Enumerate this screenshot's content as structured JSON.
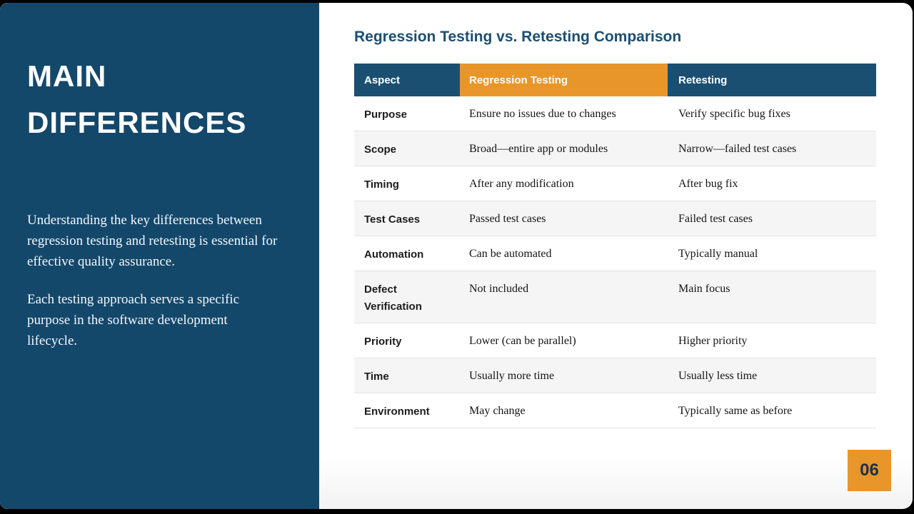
{
  "sidebar": {
    "title_line1": "MAIN",
    "title_line2": "DIFFERENCES",
    "paragraphs": [
      "Understanding the key differences between regression testing and retesting is essential for effective quality assurance.",
      "Each testing approach serves a specific purpose in the software development lifecycle."
    ]
  },
  "main": {
    "title": "Regression Testing vs. Retesting Comparison",
    "table": {
      "headers": [
        "Aspect",
        "Regression Testing",
        "Retesting"
      ],
      "rows": [
        {
          "aspect": "Purpose",
          "regression": "Ensure no issues due to changes",
          "retesting": "Verify specific bug fixes"
        },
        {
          "aspect": "Scope",
          "regression": "Broad—entire app or modules",
          "retesting": "Narrow—failed test cases"
        },
        {
          "aspect": "Timing",
          "regression": "After any modification",
          "retesting": "After bug fix"
        },
        {
          "aspect": "Test Cases",
          "regression": "Passed test cases",
          "retesting": "Failed test cases"
        },
        {
          "aspect": "Automation",
          "regression": "Can be automated",
          "retesting": "Typically manual"
        },
        {
          "aspect": "Defect Verification",
          "regression": "Not included",
          "retesting": "Main focus"
        },
        {
          "aspect": "Priority",
          "regression": "Lower (can be parallel)",
          "retesting": "Higher priority"
        },
        {
          "aspect": "Time",
          "regression": "Usually more time",
          "retesting": "Usually less time"
        },
        {
          "aspect": "Environment",
          "regression": "May change",
          "retesting": "Typically same as before"
        }
      ]
    },
    "page_number": "06"
  },
  "colors": {
    "sidebar_blue": "#14486b",
    "header_blue": "#1b4f72",
    "accent_orange": "#e8962a",
    "title_blue": "#1b4f72",
    "row_alt": "#f5f5f6"
  }
}
